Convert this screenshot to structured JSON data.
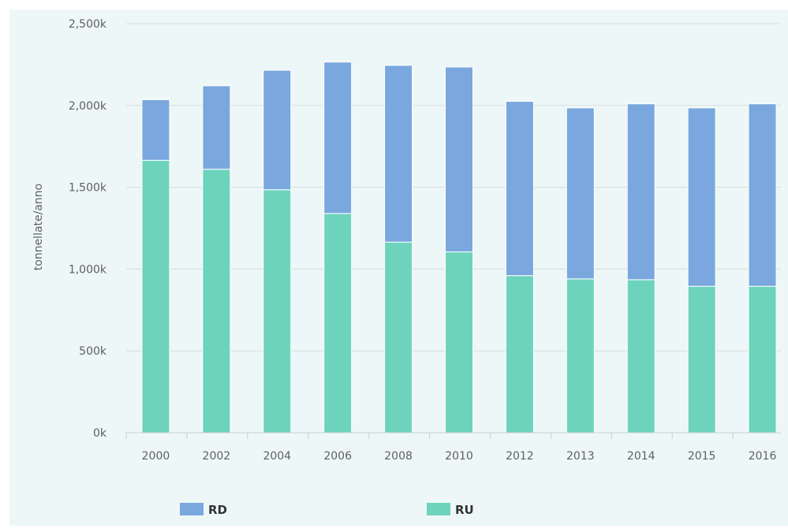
{
  "chart_data": {
    "type": "bar",
    "stacked": true,
    "categories": [
      "2000",
      "2002",
      "2004",
      "2006",
      "2008",
      "2010",
      "2012",
      "2013",
      "2014",
      "2015",
      "2016"
    ],
    "series": [
      {
        "name": "RU",
        "color": "#6dd3bd",
        "values": [
          1665,
          1610,
          1485,
          1340,
          1165,
          1105,
          960,
          940,
          935,
          895,
          895
        ]
      },
      {
        "name": "RD",
        "color": "#7aa7dd",
        "values": [
          370,
          510,
          730,
          925,
          1080,
          1130,
          1065,
          1045,
          1075,
          1090,
          1115
        ]
      }
    ],
    "series_order_legend": [
      "RD",
      "RU"
    ],
    "xlabel": "",
    "ylabel": "tonnellate/anno",
    "ylim": [
      0,
      2500
    ],
    "yticks": [
      0,
      500,
      1000,
      1500,
      2000,
      2500
    ],
    "ytick_labels": [
      "0k",
      "500k",
      "1,000k",
      "1,500k",
      "2,000k",
      "2,500k"
    ],
    "grid": true,
    "legend_position": "bottom"
  }
}
